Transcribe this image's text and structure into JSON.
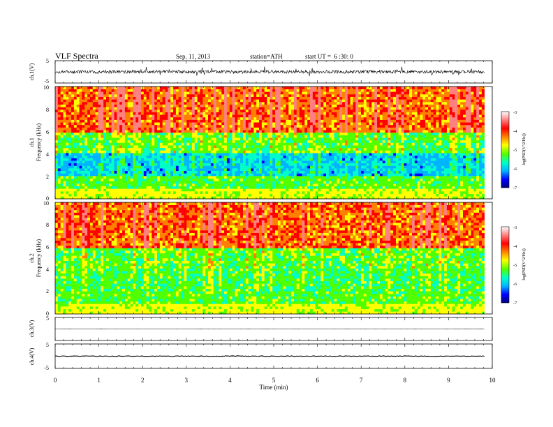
{
  "header": {
    "title": "VLF Spectra",
    "date": "Sep. 11, 2013",
    "station": "station=ATH",
    "start": "start UT =  6 :30: 0"
  },
  "colorbar": {
    "label": "log(PSD(V^2/Hz))",
    "ticks": [
      "-3",
      "-4",
      "-5",
      "-6",
      "-7"
    ],
    "colors": [
      "#000080",
      "#0000ff",
      "#00b4ff",
      "#00ffc8",
      "#50ff00",
      "#ffff00",
      "#ff8000",
      "#ff0000",
      "#ff8080",
      "#ffffff"
    ]
  },
  "x_axis": {
    "label": "Time (min)",
    "ticks": [
      "0",
      "1",
      "2",
      "3",
      "4",
      "5",
      "6",
      "7",
      "8",
      "9",
      "10"
    ]
  },
  "chart_data": [
    {
      "type": "line",
      "name": "ch1-waveform",
      "ylabel": "ch.1(V)",
      "ylim": [
        -5,
        5
      ],
      "yticks": [
        "5",
        "-5"
      ],
      "xlim": [
        0,
        10
      ],
      "data_end_min": 9.82,
      "mean": 0,
      "noise_amplitude": 1.2
    },
    {
      "type": "heatmap",
      "name": "ch1-spectrogram",
      "ylabel_top": "ch.1",
      "ylabel": "Frequency (kHz)",
      "ylim": [
        0,
        10
      ],
      "yticks": [
        "10",
        "8",
        "6",
        "4",
        "2",
        "0"
      ],
      "xlim": [
        0,
        10
      ],
      "data_end_min": 9.82,
      "zlim": [
        -7,
        -3
      ]
    },
    {
      "type": "heatmap",
      "name": "ch2-spectrogram",
      "ylabel_top": "ch.2",
      "ylabel": "Frequency (kHz)",
      "ylim": [
        0,
        10
      ],
      "yticks": [
        "10",
        "8",
        "6",
        "4",
        "2",
        "0"
      ],
      "xlim": [
        0,
        10
      ],
      "data_end_min": 9.82,
      "zlim": [
        -7,
        -3
      ]
    },
    {
      "type": "line",
      "name": "ch3-waveform",
      "ylabel": "ch.3(V)",
      "ylim": [
        -5,
        5
      ],
      "yticks": [
        "5"
      ],
      "xlim": [
        0,
        10
      ],
      "data_end_min": 9.82,
      "mean": 0,
      "noise_amplitude": 0.03
    },
    {
      "type": "line",
      "name": "ch4-waveform",
      "ylabel": "ch.4(V)",
      "ylim": [
        -5,
        5
      ],
      "yticks": [
        "5",
        "-5"
      ],
      "xlim": [
        0,
        10
      ],
      "data_end_min": 9.82,
      "mean": 0,
      "noise_amplitude": 0.25
    }
  ]
}
